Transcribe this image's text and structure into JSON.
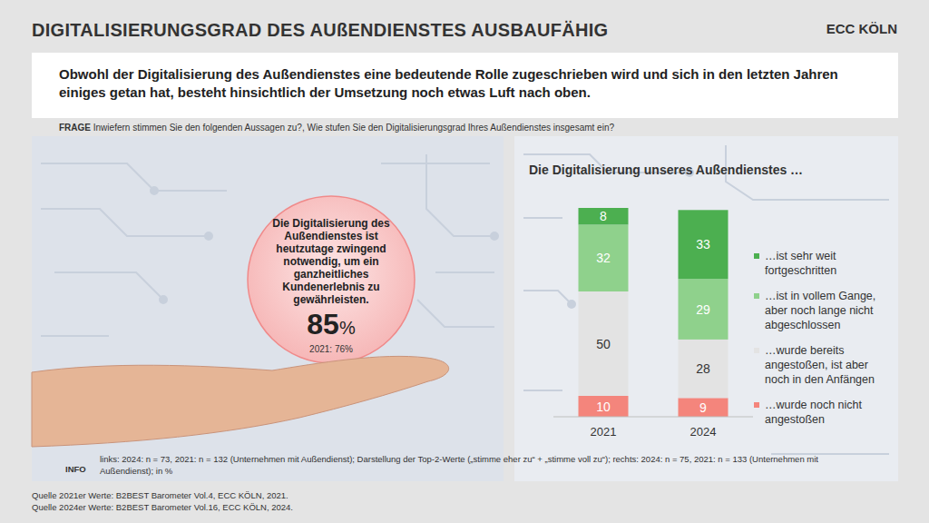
{
  "header": {
    "title": "DIGITALISIERUNGSGRAD DES AUßENDIENSTES AUSBAUFÄHIG",
    "logo": "ECC KÖLN",
    "subtitle": "Obwohl der Digitalisierung des Außendienstes eine bedeutende Rolle zugeschrieben wird und sich in den letzten Jahren einiges getan hat, besteht hinsichtlich der Umsetzung noch etwas Luft nach oben.",
    "question_label": "FRAGE",
    "question": "Inwiefern stimmen Sie den folgenden Aussagen zu?, Wie stufen Sie den Digitalisierungsgrad Ihres Außendienstes insgesamt ein?"
  },
  "kpi": {
    "statement": "Die Digitalisierung des Außendienstes ist heutzutage zwingend notwendig, um ein ganzheitliches Kundenerlebnis zu gewährleisten.",
    "value": 85,
    "unit": "%",
    "comparison": "2021: 76%"
  },
  "chart_data": {
    "type": "bar",
    "stacked": true,
    "title": "Die Digitalisierung unseres Außendienstes …",
    "categories": [
      "2021",
      "2024"
    ],
    "series": [
      {
        "name": "…ist sehr weit fortgeschritten",
        "color": "#4caf50",
        "values": [
          8,
          33
        ]
      },
      {
        "name": "…ist in vollem Gange, aber noch lange nicht abgeschlossen",
        "color": "#8fd18c",
        "values": [
          32,
          29
        ]
      },
      {
        "name": "…wurde bereits angestoßen, ist aber noch in den Anfängen",
        "color": "#e3e3e3",
        "values": [
          50,
          28
        ]
      },
      {
        "name": "…wurde noch nicht angestoßen",
        "color": "#f4857c",
        "values": [
          10,
          9
        ]
      }
    ],
    "ylim": [
      0,
      100
    ],
    "data_labels": true,
    "tick_labels": false,
    "legend": "right"
  },
  "footer": {
    "info_label": "INFO",
    "info": "links: 2024: n = 73, 2021: n = 132 (Unternehmen mit Außendienst); Darstellung der Top-2-Werte („stimme eher zu“ + „stimme voll zu“); rechts: 2024: n = 75, 2021: n = 133 (Unternehmen mit Außendienst); in %",
    "sources": [
      "Quelle 2021er Werte: B2BEST Barometer Vol.4, ECC KÖLN, 2021.",
      "Quelle 2024er Werte: B2BEST Barometer Vol.16, ECC KÖLN, 2024."
    ]
  }
}
